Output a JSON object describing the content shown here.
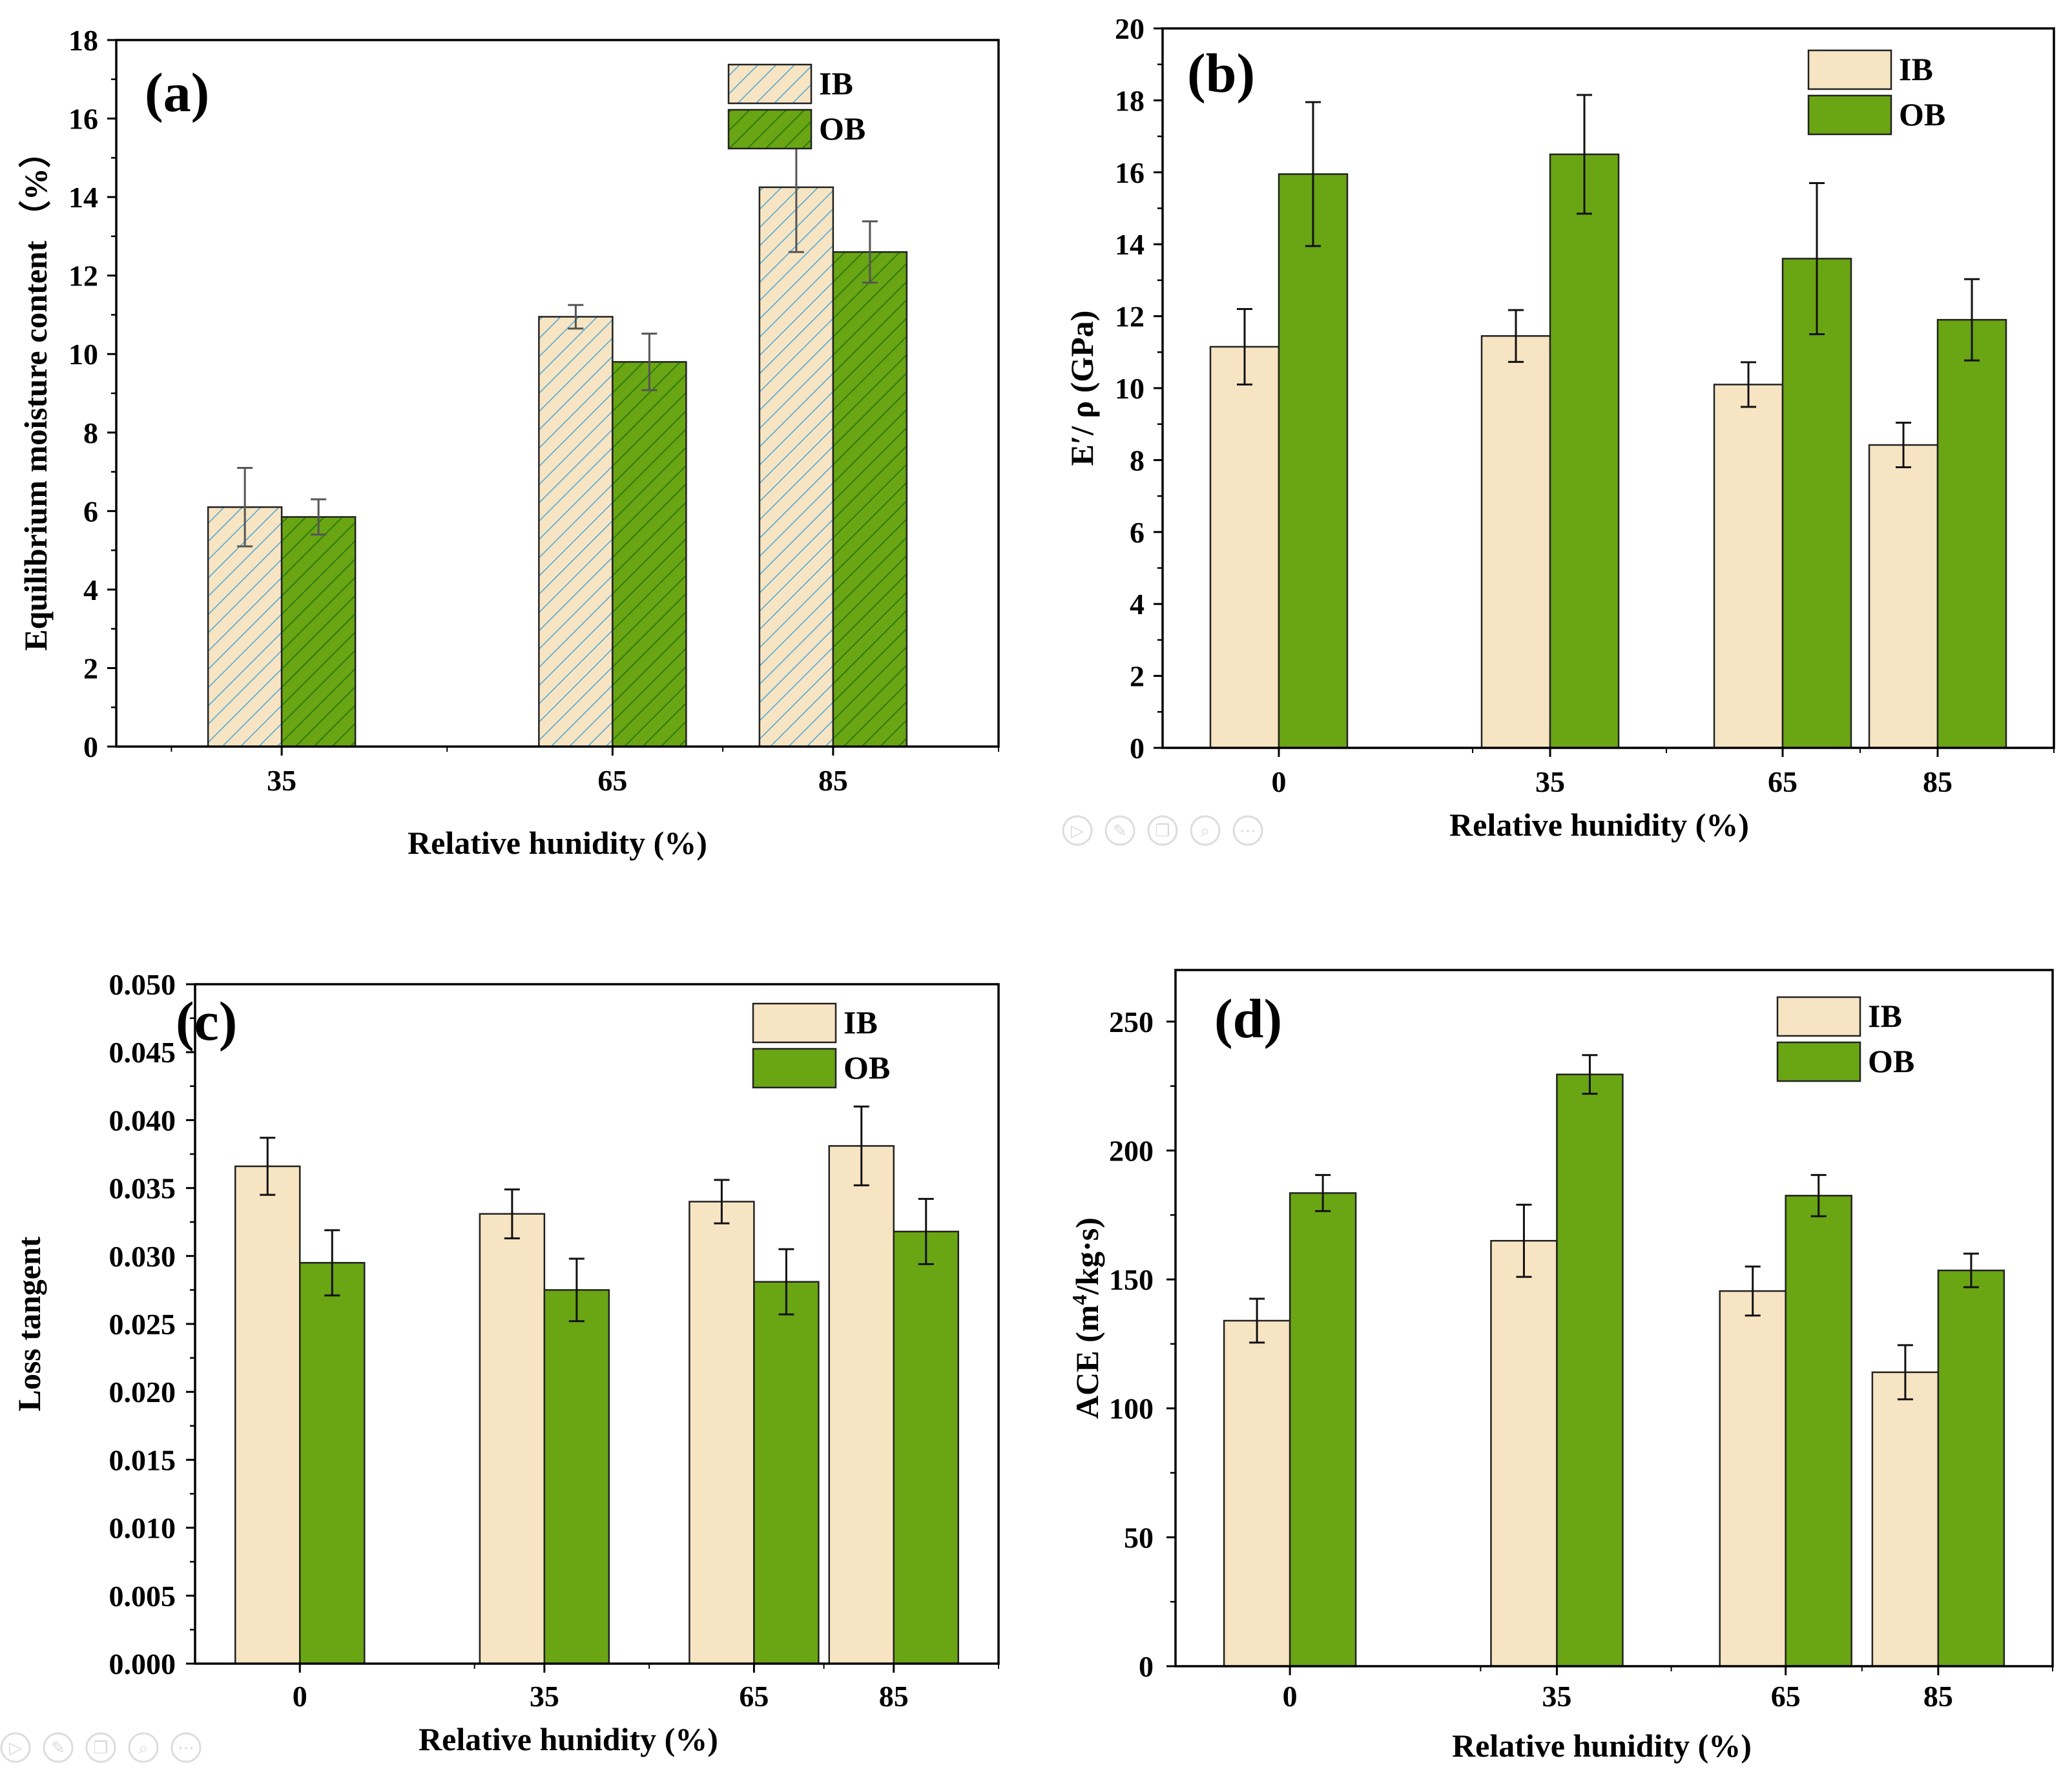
{
  "colors": {
    "ib_fill": "#f7e4c2",
    "ib_hatch": "#4aa6d6",
    "ob_fill": "#6aa514",
    "ob_hatch": "#2f7d0a",
    "bar_stroke": "#222222",
    "error_bar_plain": "#111111",
    "error_bar_hatched": "#555555"
  },
  "toolbar_icons": [
    "play-icon",
    "edit-icon",
    "copy-icon",
    "zoom-icon",
    "more-icon"
  ],
  "chart_data": [
    {
      "panel": "(a)",
      "type": "bar",
      "style": "hatched",
      "categories": [
        "35",
        "65",
        "85"
      ],
      "category_x": [
        35,
        65,
        85
      ],
      "xlim": [
        20,
        100
      ],
      "xlabel": "Relative hunidity (%)",
      "ylabel": "Equilibrium moisture content （%）",
      "ylim": [
        0,
        18
      ],
      "yticks": [
        "0",
        "2",
        "4",
        "6",
        "8",
        "10",
        "12",
        "14",
        "16",
        "18"
      ],
      "series": [
        {
          "name": "IB",
          "values": [
            6.1,
            10.95,
            14.25
          ],
          "errors": [
            1.0,
            0.3,
            1.65
          ]
        },
        {
          "name": "OB",
          "values": [
            5.85,
            9.8,
            12.6
          ],
          "errors": [
            0.45,
            0.72,
            0.78
          ]
        }
      ],
      "legend": "top-right"
    },
    {
      "panel": "(b)",
      "type": "bar",
      "style": "solid",
      "categories": [
        "0",
        "35",
        "65",
        "85"
      ],
      "category_x": [
        0,
        35,
        65,
        85
      ],
      "xlim": [
        -15,
        100
      ],
      "xlabel": "Relative hunidity (%)",
      "ylabel": "E′/ ρ (GPa)",
      "ylim": [
        0,
        20
      ],
      "yticks": [
        "0",
        "2",
        "4",
        "6",
        "8",
        "10",
        "12",
        "14",
        "16",
        "18",
        "20"
      ],
      "series": [
        {
          "name": "IB",
          "values": [
            11.15,
            11.45,
            10.1,
            8.42
          ],
          "errors": [
            1.05,
            0.72,
            0.62,
            0.62
          ]
        },
        {
          "name": "OB",
          "values": [
            15.95,
            16.5,
            13.6,
            11.9
          ],
          "errors": [
            2.0,
            1.65,
            2.1,
            1.13
          ]
        }
      ],
      "legend": "top-right"
    },
    {
      "panel": "(c)",
      "type": "bar",
      "style": "solid",
      "categories": [
        "0",
        "35",
        "65",
        "85"
      ],
      "category_x": [
        0,
        35,
        65,
        85
      ],
      "xlim": [
        -15,
        100
      ],
      "xlabel": "Relative hunidity (%)",
      "ylabel": "Loss tangent",
      "ylim": [
        0,
        0.05
      ],
      "yticks": [
        "0.000",
        "0.005",
        "0.010",
        "0.015",
        "0.020",
        "0.025",
        "0.030",
        "0.035",
        "0.040",
        "0.045",
        "0.050"
      ],
      "series": [
        {
          "name": "IB",
          "values": [
            0.0366,
            0.0331,
            0.034,
            0.0381
          ],
          "errors": [
            0.0021,
            0.0018,
            0.0016,
            0.0029
          ]
        },
        {
          "name": "OB",
          "values": [
            0.0295,
            0.0275,
            0.0281,
            0.0318
          ],
          "errors": [
            0.0024,
            0.0023,
            0.0024,
            0.0024
          ]
        }
      ],
      "legend": "top-right"
    },
    {
      "panel": "(d)",
      "type": "bar",
      "style": "solid",
      "categories": [
        "0",
        "35",
        "65",
        "85"
      ],
      "category_x": [
        0,
        35,
        65,
        85
      ],
      "xlim": [
        -15,
        100
      ],
      "xlabel": "Relative hunidity (%)",
      "ylabel": "ACE (m4/kg·s)",
      "ylabel_parts": {
        "before": "ACE (m",
        "superscript": "4",
        "after": "/kg·s)"
      },
      "ylim": [
        0,
        270
      ],
      "yticks": [
        "0",
        "50",
        "100",
        "150",
        "200",
        "250"
      ],
      "series": [
        {
          "name": "IB",
          "values": [
            134,
            165,
            145.5,
            114
          ],
          "errors": [
            8.5,
            14,
            9.5,
            10.5
          ]
        },
        {
          "name": "OB",
          "values": [
            183.5,
            229.5,
            182.5,
            153.5
          ],
          "errors": [
            7.0,
            7.5,
            8.0,
            6.5
          ]
        }
      ],
      "legend": "top-right"
    }
  ]
}
